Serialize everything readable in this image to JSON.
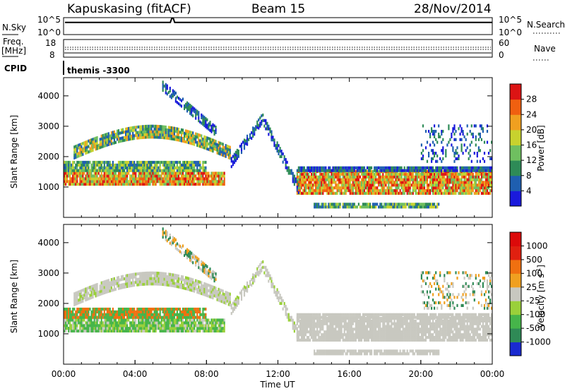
{
  "header": {
    "station": "Kapuskasing (fitACF)",
    "beam": "Beam 15",
    "date": "28/Nov/2014"
  },
  "noise_panel": {
    "left_label": "N.Sky",
    "right_label": "N.Search",
    "ticks": [
      "10^5",
      "10^0"
    ]
  },
  "freq_panel": {
    "left_label_1": "Freq.",
    "left_label_2": "[MHz]",
    "left_ticks": [
      "18",
      "8"
    ],
    "right_label": "Nave",
    "right_ticks": [
      "60",
      "0"
    ]
  },
  "cpid": {
    "label": "CPID",
    "value": "themis -3300"
  },
  "chart_data": [
    {
      "type": "heatmap",
      "title": "",
      "ylabel": "Slant Range [km]",
      "ylim": [
        0,
        4600
      ],
      "yticks": [
        "1000",
        "2000",
        "3000",
        "4000"
      ],
      "colorbar": {
        "label": "Power [dB]",
        "ticks": [
          "28",
          "24",
          "20",
          "16",
          "12",
          "8",
          "4"
        ],
        "colors": [
          "#1a1adc",
          "#1f5fb0",
          "#2e8b57",
          "#6fbf60",
          "#c8d22e",
          "#f0a020",
          "#f06010",
          "#dc1414"
        ]
      },
      "features": [
        {
          "name": "main band",
          "time_start": "00:00",
          "time_end": "24:00",
          "range_km": [
            900,
            1500
          ]
        },
        {
          "name": "arc",
          "time_start": "01:00",
          "time_end": "09:00",
          "range_km": [
            1700,
            3000
          ]
        },
        {
          "name": "v-echo",
          "time_start": "09:00",
          "time_end": "13:00",
          "range_km": [
            1000,
            3300
          ]
        }
      ]
    },
    {
      "type": "heatmap",
      "title": "",
      "ylabel": "Slant Range [km]",
      "ylim": [
        0,
        4600
      ],
      "yticks": [
        "1000",
        "2000",
        "3000",
        "4000"
      ],
      "colorbar": {
        "label": "Velocity [m s",
        "label_sup": "-1",
        "label_end": "]",
        "ticks": [
          "1000",
          "500",
          "100",
          "25",
          "-25",
          "-100",
          "-500",
          "-1000"
        ],
        "colors": [
          "#1a2ad0",
          "#2f8a56",
          "#46b54a",
          "#9ad03a",
          "#c8c8c0",
          "#f0a020",
          "#f07010",
          "#e02010",
          "#dc0a0a"
        ]
      }
    }
  ],
  "x_axis": {
    "label": "Time UT",
    "ticks": [
      "00:00",
      "04:00",
      "08:00",
      "12:00",
      "16:00",
      "20:00",
      "00:00"
    ]
  }
}
